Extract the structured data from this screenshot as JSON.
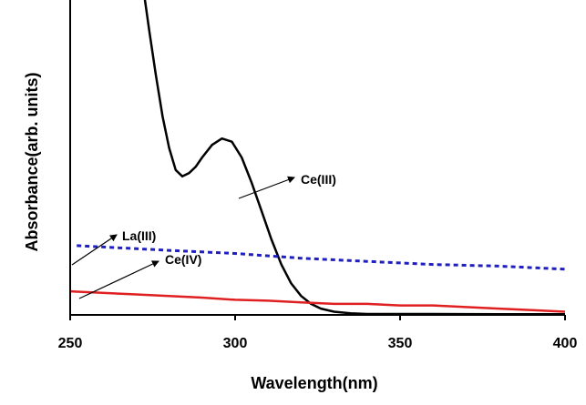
{
  "chart_data": {
    "type": "line",
    "xlabel": "Wavelength(nm)",
    "ylabel": "Absorbance(arb. units)",
    "xlim": [
      250,
      400
    ],
    "ylim": [
      0,
      1
    ],
    "x_ticks": [
      250,
      300,
      350,
      400
    ],
    "y_ticks_shown": false,
    "grid": false,
    "legend": "none",
    "series": [
      {
        "name": "Ce(III)",
        "color": "#000000",
        "style": "solid",
        "points": [
          [
            272,
            1.05
          ],
          [
            274,
            0.9
          ],
          [
            276,
            0.76
          ],
          [
            278,
            0.63
          ],
          [
            280,
            0.53
          ],
          [
            282,
            0.46
          ],
          [
            284,
            0.44
          ],
          [
            286,
            0.45
          ],
          [
            288,
            0.47
          ],
          [
            290,
            0.5
          ],
          [
            293,
            0.54
          ],
          [
            296,
            0.56
          ],
          [
            299,
            0.55
          ],
          [
            302,
            0.5
          ],
          [
            305,
            0.42
          ],
          [
            308,
            0.33
          ],
          [
            311,
            0.24
          ],
          [
            314,
            0.16
          ],
          [
            317,
            0.1
          ],
          [
            320,
            0.06
          ],
          [
            323,
            0.035
          ],
          [
            326,
            0.02
          ],
          [
            330,
            0.01
          ],
          [
            335,
            0.005
          ],
          [
            340,
            0.003
          ],
          [
            360,
            0.003
          ],
          [
            380,
            0.002
          ],
          [
            400,
            0.002
          ]
        ]
      },
      {
        "name": "La(III)",
        "color": "#1f1fbf",
        "style": "dotted",
        "points": [
          [
            252,
            0.22
          ],
          [
            280,
            0.205
          ],
          [
            300,
            0.195
          ],
          [
            320,
            0.18
          ],
          [
            340,
            0.17
          ],
          [
            360,
            0.16
          ],
          [
            380,
            0.155
          ],
          [
            400,
            0.145
          ]
        ]
      },
      {
        "name": "Ce(IV)",
        "color": "#e02020",
        "style": "solid",
        "points": [
          [
            250,
            0.075
          ],
          [
            270,
            0.065
          ],
          [
            290,
            0.055
          ],
          [
            300,
            0.048
          ],
          [
            310,
            0.045
          ],
          [
            320,
            0.04
          ],
          [
            330,
            0.035
          ],
          [
            340,
            0.035
          ],
          [
            350,
            0.03
          ],
          [
            360,
            0.03
          ],
          [
            370,
            0.025
          ],
          [
            380,
            0.02
          ],
          [
            390,
            0.015
          ],
          [
            400,
            0.01
          ]
        ]
      }
    ],
    "annotations": [
      {
        "text": "Ce(III)",
        "target_series": "Ce(III)",
        "arrow": true
      },
      {
        "text": "La(III)",
        "target_series": "La(III)",
        "arrow": true
      },
      {
        "text": "Ce(IV)",
        "target_series": "Ce(IV)",
        "arrow": true
      }
    ]
  }
}
